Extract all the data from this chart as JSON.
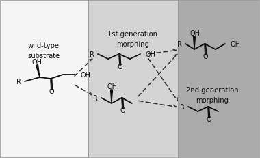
{
  "panel_colors": [
    "#f5f5f5",
    "#d4d4d4",
    "#ababab"
  ],
  "label_wildtype": "wild-type\nsubstrate",
  "label_1st": "1st generation\nmorphing",
  "label_2nd": "2nd generation\nmorphing",
  "border_color": "#999999",
  "arrow_color": "#333333",
  "text_color": "#111111",
  "fig_width": 3.8,
  "fig_height": 2.32,
  "dpi": 100
}
